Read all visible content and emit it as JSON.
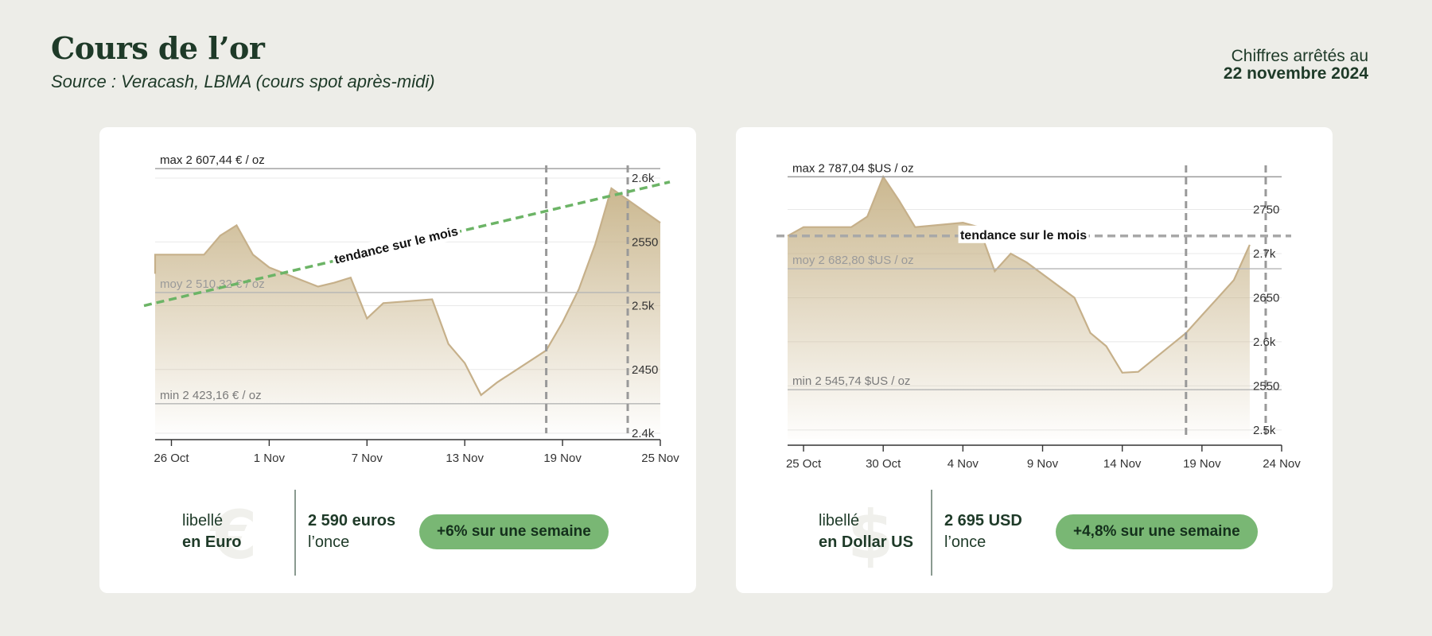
{
  "header": {
    "title": "Cours de l’or",
    "subtitle": "Source : Veracash, LBMA (cours spot après-midi)",
    "asof_line1": "Chiffres arrêtés au",
    "asof_line2": "22 novembre 2024"
  },
  "colors": {
    "background": "#edede8",
    "card": "#ffffff",
    "area": "#c8b48a",
    "line": "#c6b08a",
    "trend_up": "#6cb466",
    "trend_flat": "#a8a8a8",
    "pill": "#79b774",
    "text": "#1e3a28"
  },
  "chart_data": [
    {
      "type": "area",
      "currency": "EUR",
      "x": [
        "2024-10-24",
        "2024-10-25",
        "2024-10-28",
        "2024-10-29",
        "2024-10-30",
        "2024-10-31",
        "2024-11-01",
        "2024-11-04",
        "2024-11-05",
        "2024-11-06",
        "2024-11-07",
        "2024-11-08",
        "2024-11-11",
        "2024-11-12",
        "2024-11-13",
        "2024-11-14",
        "2024-11-15",
        "2024-11-18",
        "2024-11-19",
        "2024-11-20",
        "2024-11-21",
        "2024-11-22",
        "2024-11-25"
      ],
      "y": [
        2525,
        2540,
        2540,
        2555,
        2563,
        2540,
        2530,
        2515,
        2518,
        2522,
        2490,
        2502,
        2505,
        2470,
        2455,
        2430,
        2440,
        2465,
        2487,
        2513,
        2548,
        2592,
        2565
      ],
      "series": [
        {
          "name": "",
          "values": [
            2525,
            2540,
            2540,
            2555,
            2563,
            2540,
            2530,
            2515,
            2518,
            2522,
            2490,
            2502,
            2505,
            2470,
            2455,
            2430,
            2440,
            2465,
            2487,
            2513,
            2548,
            2592,
            2565
          ]
        }
      ],
      "xlim": [
        "2024-10-25",
        "2024-11-25"
      ],
      "ylim": [
        2400,
        2610
      ],
      "x_ticks": [
        "26 Oct",
        "1 Nov",
        "7 Nov",
        "13 Nov",
        "19 Nov",
        "25 Nov"
      ],
      "x_tick_dates": [
        "2024-10-26",
        "2024-11-01",
        "2024-11-07",
        "2024-11-13",
        "2024-11-19",
        "2024-11-25"
      ],
      "y_ticks": [
        2400,
        2450,
        2500,
        2550,
        2600
      ],
      "y_tick_labels": [
        "2.4k",
        "2450",
        "2.5k",
        "2550",
        "2.6k"
      ],
      "max": {
        "value": 2607.44,
        "label": "max 2 607,44 € / oz"
      },
      "moy": {
        "value": 2510.32,
        "label": "moy 2 510,32 € / oz"
      },
      "min": {
        "value": 2423.16,
        "label": "min 2 423,16 € / oz"
      },
      "vlines": [
        "2024-11-18",
        "2024-11-23"
      ],
      "trend": {
        "label": "tendance sur le mois",
        "start": 2500,
        "end": 2597,
        "direction": "up"
      },
      "grid": true
    },
    {
      "type": "area",
      "currency": "USD",
      "x": [
        "2024-10-24",
        "2024-10-25",
        "2024-10-28",
        "2024-10-29",
        "2024-10-30",
        "2024-10-31",
        "2024-11-01",
        "2024-11-04",
        "2024-11-05",
        "2024-11-06",
        "2024-11-07",
        "2024-11-08",
        "2024-11-11",
        "2024-11-12",
        "2024-11-13",
        "2024-11-14",
        "2024-11-15",
        "2024-11-18",
        "2024-11-19",
        "2024-11-20",
        "2024-11-21",
        "2024-11-22"
      ],
      "y": [
        2720,
        2730,
        2730,
        2742,
        2787,
        2760,
        2730,
        2735,
        2730,
        2680,
        2700,
        2690,
        2650,
        2610,
        2595,
        2565,
        2566,
        2610,
        2630,
        2650,
        2670,
        2710
      ],
      "series": [
        {
          "name": "",
          "values": [
            2720,
            2730,
            2730,
            2742,
            2787,
            2760,
            2730,
            2735,
            2730,
            2680,
            2700,
            2690,
            2650,
            2610,
            2595,
            2565,
            2566,
            2610,
            2630,
            2650,
            2670,
            2710
          ]
        }
      ],
      "xlim": [
        "2024-10-24",
        "2024-11-24"
      ],
      "ylim": [
        2490,
        2800
      ],
      "x_ticks": [
        "25 Oct",
        "30 Oct",
        "4 Nov",
        "9 Nov",
        "14 Nov",
        "19 Nov",
        "24 Nov"
      ],
      "x_tick_dates": [
        "2024-10-25",
        "2024-10-30",
        "2024-11-04",
        "2024-11-09",
        "2024-11-14",
        "2024-11-19",
        "2024-11-24"
      ],
      "y_ticks": [
        2500,
        2550,
        2600,
        2650,
        2700,
        2750
      ],
      "y_tick_labels": [
        "2.5k",
        "2550",
        "2.6k",
        "2650",
        "2.7k",
        "2750"
      ],
      "max": {
        "value": 2787.04,
        "label": "max 2 787,04 $US / oz"
      },
      "moy": {
        "value": 2682.8,
        "label": "moy 2 682,80 $US / oz"
      },
      "min": {
        "value": 2545.74,
        "label": "min 2 545,74 $US / oz"
      },
      "vlines": [
        "2024-11-18",
        "2024-11-23"
      ],
      "trend": {
        "label": "tendance sur le mois",
        "start": 2720,
        "end": 2720,
        "direction": "flat"
      },
      "grid": true
    }
  ],
  "cards": [
    {
      "libelle": "libellé",
      "currency_name": "en Euro",
      "currency_icon": "€",
      "price": "2 590 euros",
      "unit": "l’once",
      "change": "+6% sur une semaine"
    },
    {
      "libelle": "libellé",
      "currency_name": "en Dollar US",
      "currency_icon": "$",
      "price": "2 695  USD",
      "unit": "l’once",
      "change": "+4,8% sur une semaine"
    }
  ]
}
